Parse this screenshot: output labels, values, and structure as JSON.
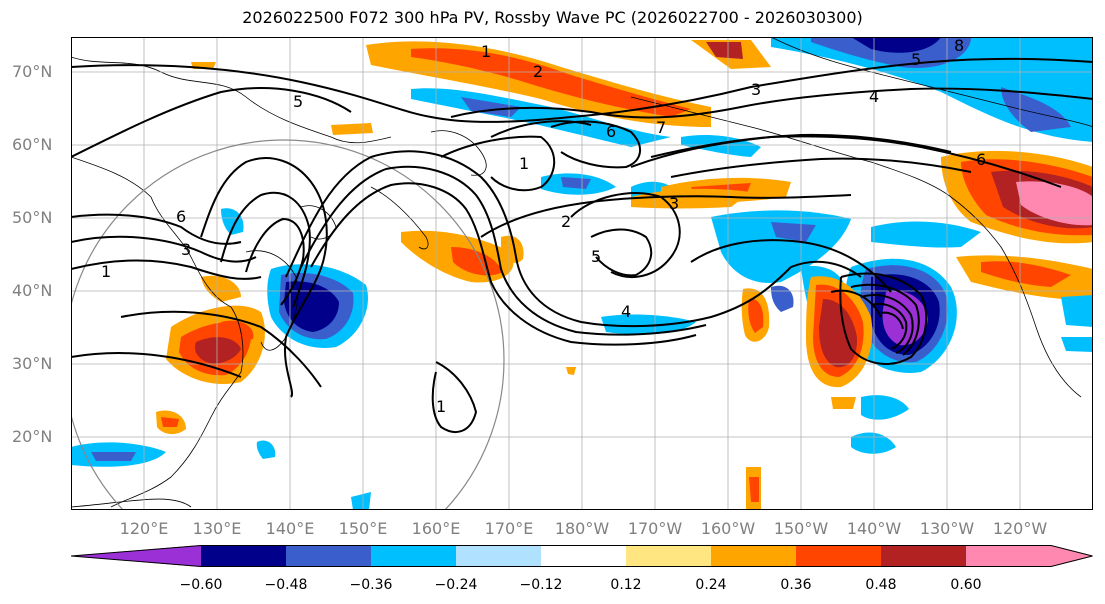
{
  "title": "2026022500 F072 300 hPa PV, Rossby Wave PC (2026022700 - 2026030300)",
  "lat_labels": [
    "70°N",
    "60°N",
    "50°N",
    "40°N",
    "30°N",
    "20°N"
  ],
  "lon_labels": [
    "120°E",
    "130°E",
    "140°E",
    "150°E",
    "160°E",
    "170°E",
    "180°W",
    "170°W",
    "160°W",
    "150°W",
    "140°W",
    "130°W",
    "120°W"
  ],
  "colorbar": {
    "ticks": [
      "−0.60",
      "−0.48",
      "−0.36",
      "−0.24",
      "−0.12",
      "0.12",
      "0.24",
      "0.36",
      "0.48",
      "0.60"
    ],
    "colors": [
      "#9b30d6",
      "#00008b",
      "#3a5fcd",
      "#00bfff",
      "#b0e2ff",
      "#ffffff",
      "#ffe680",
      "#ffa500",
      "#ff4500",
      "#b22222",
      "#ff88b0"
    ]
  },
  "contour_labels": [
    "1",
    "2",
    "3",
    "4",
    "5",
    "6",
    "7",
    "8"
  ],
  "colors": {
    "grid": "#b0b0b0",
    "circle": "#888888",
    "contour": "#000000"
  }
}
